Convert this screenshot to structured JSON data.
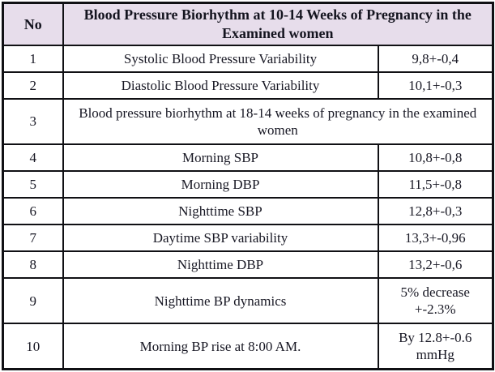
{
  "table": {
    "colors": {
      "header_background": "#e7ddeb",
      "border": "#101014",
      "text": "#181824"
    },
    "header": {
      "no": "No",
      "title": "Blood Pressure Biorhythm at 10-14 Weeks of Pregnancy in the Examined women"
    },
    "rows": [
      {
        "no": "1",
        "label": "Systolic Blood Pressure Variability",
        "value": "9,8+-0,4"
      },
      {
        "no": "2",
        "label": "Diastolic Blood Pressure Variability",
        "value": "10,1+-0,3"
      },
      {
        "no": "3",
        "label": "Blood pressure biorhythm at 18-14 weeks of pregnancy in the examined women",
        "value": ""
      },
      {
        "no": "4",
        "label": "Morning SBP",
        "value": "10,8+-0,8"
      },
      {
        "no": "5",
        "label": "Morning DBP",
        "value": "11,5+-0,8"
      },
      {
        "no": "6",
        "label": "Nighttime SBP",
        "value": "12,8+-0,3"
      },
      {
        "no": "7",
        "label": "Daytime SBP variability",
        "value": "13,3+-0,96"
      },
      {
        "no": "8",
        "label": "Nighttime DBP",
        "value": "13,2+-0,6"
      },
      {
        "no": "9",
        "label": "Nighttime BP dynamics",
        "value": "5% decrease +-2.3%"
      },
      {
        "no": "10",
        "label": "Morning BP rise at 8:00 AM.",
        "value": "By 12.8+-0.6 mmHg"
      }
    ]
  }
}
